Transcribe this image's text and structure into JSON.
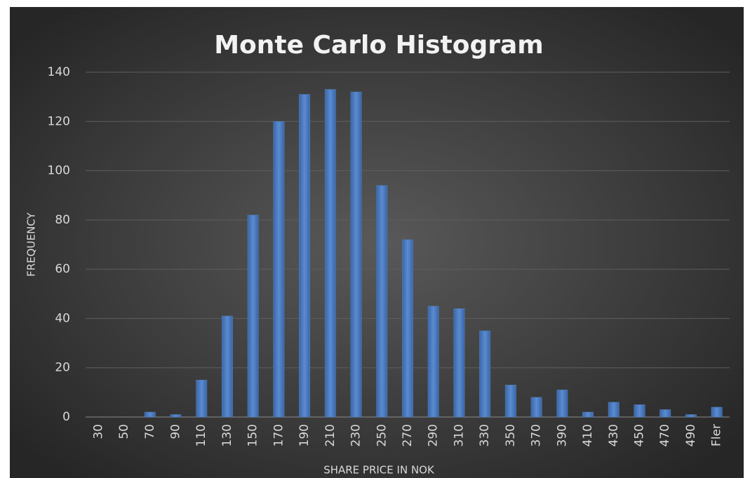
{
  "chart_data": {
    "type": "bar",
    "title": "Monte Carlo Histogram",
    "x_label": "SHARE PRICE IN NOK",
    "y_label": "FREQUENCY",
    "categories": [
      "30",
      "50",
      "70",
      "90",
      "110",
      "130",
      "150",
      "170",
      "190",
      "210",
      "230",
      "250",
      "270",
      "290",
      "310",
      "330",
      "350",
      "370",
      "390",
      "410",
      "430",
      "450",
      "470",
      "490",
      "Fler"
    ],
    "values": [
      0,
      0,
      2,
      1,
      15,
      41,
      82,
      120,
      131,
      133,
      132,
      94,
      72,
      45,
      44,
      35,
      13,
      8,
      11,
      2,
      6,
      5,
      3,
      1,
      4
    ],
    "color": "#4f81bd",
    "ylim": [
      0,
      140
    ],
    "yticks": [
      0,
      20,
      40,
      60,
      80,
      100,
      120,
      140
    ],
    "grid": true
  }
}
